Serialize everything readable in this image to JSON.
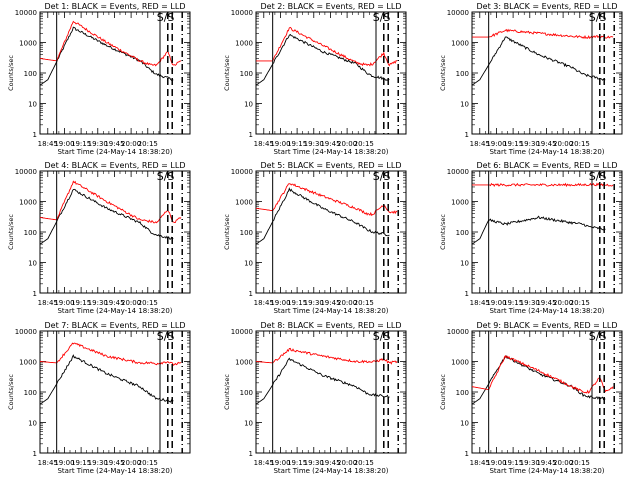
{
  "chart_data": [
    {
      "type": "line",
      "title": "Det 1: BLACK = Events, RED = LLD",
      "xlabel": "Start Time (24-May-14 18:38:20)",
      "ylabel": "Counts/sec",
      "xticks": [
        "18:45",
        "19:00",
        "19:15",
        "19:30",
        "19:45",
        "20:00",
        "20:15"
      ],
      "yticks": [
        "1",
        "10",
        "100",
        "1000",
        "10000"
      ],
      "ylog": true,
      "ylim": [
        1,
        10000
      ],
      "overlay_text": "S/S",
      "series": [
        {
          "name": "Events",
          "color": "#000000",
          "x_min": [
            0,
            7,
            30,
            60,
            90,
            100,
            105,
            120
          ],
          "y": [
            40,
            60,
            3000,
            800,
            250,
            120,
            90,
            60
          ]
        },
        {
          "name": "LLD",
          "color": "#ff0000",
          "x_min": [
            0,
            15,
            30,
            60,
            90,
            100,
            105,
            115,
            120,
            127
          ],
          "y": [
            300,
            250,
            5000,
            1000,
            250,
            180,
            180,
            500,
            170,
            250
          ]
        }
      ],
      "markers": [
        {
          "x_min": 15,
          "style": "solid"
        },
        {
          "x_min": 108,
          "style": "solid"
        },
        {
          "x_min": 115,
          "style": "dashed"
        },
        {
          "x_min": 119,
          "style": "dashed"
        },
        {
          "x_min": 128,
          "style": "dashdot"
        }
      ]
    },
    {
      "type": "line",
      "title": "Det 2: BLACK = Events, RED = LLD",
      "xlabel": "Start Time (24-May-14 18:38:20)",
      "ylabel": "Counts/sec",
      "xticks": [
        "18:45",
        "19:00",
        "19:15",
        "19:30",
        "19:45",
        "20:00",
        "20:15"
      ],
      "yticks": [
        "1",
        "10",
        "100",
        "1000",
        "10000"
      ],
      "ylog": true,
      "ylim": [
        1,
        10000
      ],
      "overlay_text": "S/S",
      "series": [
        {
          "name": "Events",
          "color": "#000000",
          "x_min": [
            0,
            7,
            30,
            60,
            90,
            100,
            105,
            120
          ],
          "y": [
            40,
            60,
            1800,
            500,
            200,
            100,
            80,
            60
          ]
        },
        {
          "name": "LLD",
          "color": "#ff0000",
          "x_min": [
            0,
            15,
            30,
            60,
            90,
            100,
            105,
            115,
            120,
            127
          ],
          "y": [
            250,
            250,
            3000,
            800,
            220,
            180,
            200,
            450,
            180,
            250
          ]
        }
      ],
      "markers": [
        {
          "x_min": 15,
          "style": "solid"
        },
        {
          "x_min": 108,
          "style": "solid"
        },
        {
          "x_min": 115,
          "style": "dashed"
        },
        {
          "x_min": 119,
          "style": "dashed"
        },
        {
          "x_min": 128,
          "style": "dashdot"
        }
      ]
    },
    {
      "type": "line",
      "title": "Det 3: BLACK = Events, RED = LLD",
      "xlabel": "Start Time (24-May-14 18:38:20)",
      "ylabel": "Counts/sec",
      "xticks": [
        "18:45",
        "19:00",
        "19:15",
        "19:30",
        "19:45",
        "20:00",
        "20:15"
      ],
      "yticks": [
        "1",
        "10",
        "100",
        "1000",
        "10000"
      ],
      "ylog": true,
      "ylim": [
        1,
        10000
      ],
      "overlay_text": "S/S",
      "series": [
        {
          "name": "Events",
          "color": "#000000",
          "x_min": [
            0,
            7,
            30,
            60,
            90,
            100,
            105,
            120
          ],
          "y": [
            40,
            60,
            1500,
            400,
            150,
            90,
            80,
            60
          ]
        },
        {
          "name": "LLD",
          "color": "#ff0000",
          "x_min": [
            0,
            15,
            30,
            60,
            90,
            100,
            105,
            115,
            120,
            127
          ],
          "y": [
            1500,
            1500,
            2500,
            2000,
            1600,
            1500,
            1500,
            1600,
            1500,
            1500
          ]
        }
      ],
      "markers": [
        {
          "x_min": 15,
          "style": "solid"
        },
        {
          "x_min": 108,
          "style": "solid"
        },
        {
          "x_min": 115,
          "style": "dashed"
        },
        {
          "x_min": 119,
          "style": "dashed"
        },
        {
          "x_min": 128,
          "style": "dashdot"
        }
      ]
    },
    {
      "type": "line",
      "title": "Det 4: BLACK = Events, RED = LLD",
      "xlabel": "Start Time (24-May-14 18:38:20)",
      "ylabel": "Counts/sec",
      "xticks": [
        "18:45",
        "19:00",
        "19:15",
        "19:30",
        "19:45",
        "20:00",
        "20:15"
      ],
      "yticks": [
        "1",
        "10",
        "100",
        "1000",
        "10000"
      ],
      "ylog": true,
      "ylim": [
        1,
        10000
      ],
      "overlay_text": "S/S",
      "series": [
        {
          "name": "Events",
          "color": "#000000",
          "x_min": [
            0,
            7,
            30,
            60,
            90,
            100,
            105,
            120
          ],
          "y": [
            40,
            60,
            2500,
            600,
            200,
            100,
            80,
            60
          ]
        },
        {
          "name": "LLD",
          "color": "#ff0000",
          "x_min": [
            0,
            15,
            30,
            60,
            90,
            100,
            105,
            115,
            120,
            127
          ],
          "y": [
            300,
            250,
            4500,
            1000,
            250,
            220,
            200,
            550,
            200,
            300
          ]
        }
      ],
      "markers": [
        {
          "x_min": 15,
          "style": "solid"
        },
        {
          "x_min": 108,
          "style": "solid"
        },
        {
          "x_min": 115,
          "style": "dashed"
        },
        {
          "x_min": 119,
          "style": "dashed"
        },
        {
          "x_min": 128,
          "style": "dashdot"
        }
      ]
    },
    {
      "type": "line",
      "title": "Det 5: BLACK = Events, RED = LLD",
      "xlabel": "Start Time (24-May-14 18:38:20)",
      "ylabel": "Counts/sec",
      "xticks": [
        "18:45",
        "19:00",
        "19:15",
        "19:30",
        "19:45",
        "20:00",
        "20:15"
      ],
      "yticks": [
        "1",
        "10",
        "100",
        "1000",
        "10000"
      ],
      "ylog": true,
      "ylim": [
        1,
        10000
      ],
      "overlay_text": "S/S",
      "series": [
        {
          "name": "Events",
          "color": "#000000",
          "x_min": [
            0,
            7,
            30,
            60,
            90,
            100,
            105,
            120
          ],
          "y": [
            40,
            60,
            2500,
            600,
            200,
            120,
            100,
            80
          ]
        },
        {
          "name": "LLD",
          "color": "#ff0000",
          "x_min": [
            0,
            15,
            30,
            60,
            90,
            100,
            105,
            115,
            120,
            127
          ],
          "y": [
            600,
            500,
            4000,
            1500,
            600,
            400,
            380,
            800,
            450,
            450
          ]
        }
      ],
      "markers": [
        {
          "x_min": 15,
          "style": "solid"
        },
        {
          "x_min": 108,
          "style": "solid"
        },
        {
          "x_min": 115,
          "style": "dashed"
        },
        {
          "x_min": 119,
          "style": "dashed"
        },
        {
          "x_min": 128,
          "style": "dashdot"
        }
      ]
    },
    {
      "type": "line",
      "title": "Det 6: BLACK = Events, RED = LLD",
      "xlabel": "Start Time (24-May-14 18:38:20)",
      "ylabel": "Counts/sec",
      "xticks": [
        "18:45",
        "19:00",
        "19:15",
        "19:30",
        "19:45",
        "20:00",
        "20:15"
      ],
      "yticks": [
        "1",
        "10",
        "100",
        "1000",
        "10000"
      ],
      "ylog": true,
      "ylim": [
        1,
        10000
      ],
      "overlay_text": "S/S",
      "series": [
        {
          "name": "Events",
          "color": "#000000",
          "x_min": [
            0,
            7,
            15,
            30,
            60,
            90,
            100,
            105,
            120
          ],
          "y": [
            40,
            60,
            250,
            180,
            300,
            200,
            180,
            150,
            120
          ]
        },
        {
          "name": "LLD",
          "color": "#ff0000",
          "x_min": [
            0,
            30,
            60,
            90,
            100,
            105,
            115,
            120,
            127
          ],
          "y": [
            3500,
            3500,
            3500,
            3500,
            3500,
            3600,
            3600,
            3500,
            3500
          ]
        }
      ],
      "markers": [
        {
          "x_min": 15,
          "style": "solid"
        },
        {
          "x_min": 108,
          "style": "solid"
        },
        {
          "x_min": 115,
          "style": "dashed"
        },
        {
          "x_min": 119,
          "style": "dashed"
        },
        {
          "x_min": 128,
          "style": "dashdot"
        }
      ]
    },
    {
      "type": "line",
      "title": "Det 7: BLACK = Events, RED = LLD",
      "xlabel": "Start Time (24-May-14 18:38:20)",
      "ylabel": "Counts/sec",
      "xticks": [
        "18:45",
        "19:00",
        "19:15",
        "19:30",
        "19:45",
        "20:00",
        "20:15"
      ],
      "yticks": [
        "1",
        "10",
        "100",
        "1000",
        "10000"
      ],
      "ylog": true,
      "ylim": [
        1,
        10000
      ],
      "overlay_text": "S/S",
      "series": [
        {
          "name": "Events",
          "color": "#000000",
          "x_min": [
            0,
            7,
            30,
            60,
            90,
            100,
            105,
            120
          ],
          "y": [
            40,
            60,
            1500,
            400,
            150,
            80,
            60,
            50
          ]
        },
        {
          "name": "LLD",
          "color": "#ff0000",
          "x_min": [
            0,
            15,
            30,
            60,
            90,
            100,
            105,
            115,
            120,
            127
          ],
          "y": [
            1000,
            900,
            4000,
            1500,
            900,
            900,
            850,
            1000,
            800,
            900
          ]
        }
      ],
      "markers": [
        {
          "x_min": 15,
          "style": "solid"
        },
        {
          "x_min": 108,
          "style": "solid"
        },
        {
          "x_min": 115,
          "style": "dashed"
        },
        {
          "x_min": 119,
          "style": "dashed"
        },
        {
          "x_min": 128,
          "style": "dashdot"
        }
      ]
    },
    {
      "type": "line",
      "title": "Det 8: BLACK = Events, RED = LLD",
      "xlabel": "Start Time (24-May-14 18:38:20)",
      "ylabel": "Counts/sec",
      "xticks": [
        "18:45",
        "19:00",
        "19:15",
        "19:30",
        "19:45",
        "20:00",
        "20:15"
      ],
      "yticks": [
        "1",
        "10",
        "100",
        "1000",
        "10000"
      ],
      "ylog": true,
      "ylim": [
        1,
        10000
      ],
      "overlay_text": "S/S",
      "series": [
        {
          "name": "Events",
          "color": "#000000",
          "x_min": [
            0,
            7,
            30,
            60,
            90,
            100,
            105,
            120
          ],
          "y": [
            40,
            60,
            1200,
            350,
            150,
            90,
            80,
            70
          ]
        },
        {
          "name": "LLD",
          "color": "#ff0000",
          "x_min": [
            0,
            15,
            30,
            60,
            90,
            100,
            105,
            115,
            120,
            127
          ],
          "y": [
            1000,
            900,
            2500,
            1500,
            1000,
            1000,
            950,
            1200,
            900,
            1000
          ]
        }
      ],
      "markers": [
        {
          "x_min": 15,
          "style": "solid"
        },
        {
          "x_min": 108,
          "style": "solid"
        },
        {
          "x_min": 115,
          "style": "dashed"
        },
        {
          "x_min": 119,
          "style": "dashed"
        },
        {
          "x_min": 128,
          "style": "dashdot"
        }
      ]
    },
    {
      "type": "line",
      "title": "Det 9: BLACK = Events, RED = LLD",
      "xlabel": "Start Time (24-May-14 18:38:20)",
      "ylabel": "Counts/sec",
      "xticks": [
        "18:45",
        "19:00",
        "19:15",
        "19:30",
        "19:45",
        "20:00",
        "20:15"
      ],
      "yticks": [
        "1",
        "10",
        "100",
        "1000",
        "10000"
      ],
      "ylog": true,
      "ylim": [
        1,
        10000
      ],
      "overlay_text": "S/S",
      "series": [
        {
          "name": "Events",
          "color": "#000000",
          "x_min": [
            0,
            7,
            30,
            60,
            90,
            100,
            105,
            120
          ],
          "y": [
            40,
            60,
            1500,
            400,
            150,
            80,
            70,
            60
          ]
        },
        {
          "name": "LLD",
          "color": "#ff0000",
          "x_min": [
            0,
            15,
            30,
            60,
            90,
            100,
            105,
            115,
            120,
            127
          ],
          "y": [
            150,
            120,
            1500,
            500,
            150,
            100,
            100,
            300,
            100,
            150
          ]
        }
      ],
      "markers": [
        {
          "x_min": 15,
          "style": "solid"
        },
        {
          "x_min": 108,
          "style": "solid"
        },
        {
          "x_min": 115,
          "style": "dashed"
        },
        {
          "x_min": 119,
          "style": "dashed"
        },
        {
          "x_min": 128,
          "style": "dashdot"
        }
      ]
    }
  ]
}
